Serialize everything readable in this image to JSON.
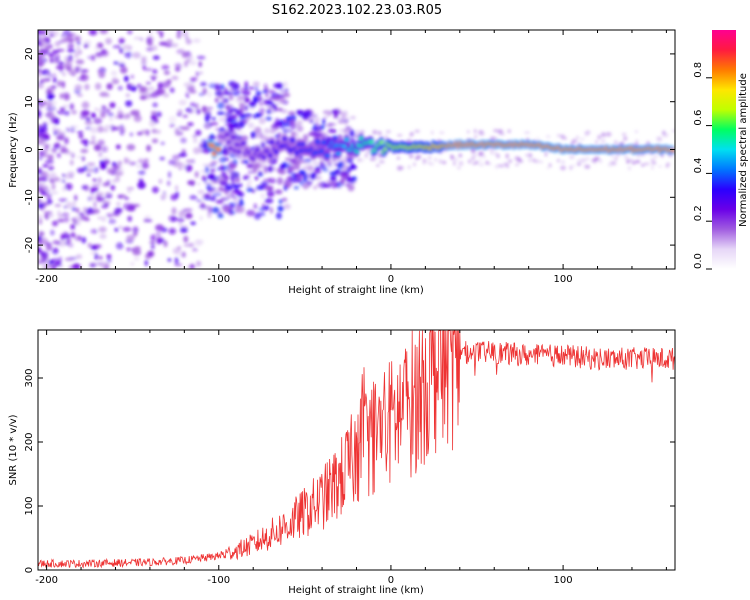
{
  "figure_title": "S162.2023.102.23.03.R05",
  "chart_data": [
    {
      "type": "heatmap",
      "title": "",
      "xlabel": "Height of straight line (km)",
      "ylabel": "Frequency (Hz)",
      "xlim": [
        -205,
        165
      ],
      "ylim": [
        -25,
        25
      ],
      "xticks": [
        -200,
        -100,
        0,
        100
      ],
      "yticks": [
        -20,
        -10,
        0,
        10,
        20
      ],
      "grid": false,
      "colormap": [
        "#ffffff",
        "#e6d6f7",
        "#a05ce0",
        "#6a00e8",
        "#2a00ff",
        "#0077ff",
        "#00e0f0",
        "#00ff60",
        "#c0ff00",
        "#ffe600",
        "#ff7a00",
        "#ff1a40",
        "#ff0090"
      ],
      "colorbar": {
        "label": "Normalized spectral amplitude",
        "range": [
          0,
          1
        ],
        "ticks": [
          0.0,
          0.2,
          0.4,
          0.6,
          0.8
        ],
        "tick_labels": [
          "0.0",
          "0.2",
          "0.4",
          "0.6",
          "0.8"
        ]
      },
      "description_of_signal": "broadband noise below about -100 km; energy concentrates near 0-2 Hz and becomes a steady strong line above about 30 km",
      "ridge": [
        {
          "x": -100,
          "freq": 3,
          "amp": 0.25
        },
        {
          "x": -80,
          "freq": -1,
          "amp": 0.3
        },
        {
          "x": -60,
          "freq": 1,
          "amp": 0.35
        },
        {
          "x": -40,
          "freq": 0,
          "amp": 0.4
        },
        {
          "x": -20,
          "freq": 1,
          "amp": 0.55
        },
        {
          "x": 0,
          "freq": 0.5,
          "amp": 0.7
        },
        {
          "x": 20,
          "freq": 0.5,
          "amp": 0.8
        },
        {
          "x": 40,
          "freq": 1,
          "amp": 0.95
        },
        {
          "x": 60,
          "freq": 1,
          "amp": 0.95
        },
        {
          "x": 80,
          "freq": 1,
          "amp": 0.95
        },
        {
          "x": 100,
          "freq": 0,
          "amp": 0.95
        },
        {
          "x": 120,
          "freq": 0,
          "amp": 0.95
        },
        {
          "x": 160,
          "freq": 0,
          "amp": 0.95
        }
      ]
    },
    {
      "type": "line",
      "title": "",
      "xlabel": "Height of straight line (km)",
      "ylabel": "SNR (10 * v/v)",
      "xlim": [
        -205,
        165
      ],
      "ylim": [
        0,
        375
      ],
      "xticks": [
        -200,
        -100,
        0,
        100
      ],
      "yticks": [
        0,
        100,
        200,
        300
      ],
      "grid": false,
      "color": "#ee3333",
      "series": [
        {
          "x": [
            -205,
            -180,
            -160,
            -140,
            -120,
            -100,
            -90,
            -80,
            -70,
            -60,
            -50,
            -40,
            -30,
            -20,
            -15,
            -10,
            -5,
            0,
            5,
            10,
            15,
            20,
            25,
            30,
            35,
            40,
            50,
            60,
            80,
            100,
            120,
            140,
            165
          ],
          "y": [
            10,
            10,
            11,
            12,
            15,
            22,
            30,
            40,
            55,
            70,
            90,
            110,
            140,
            180,
            200,
            210,
            220,
            230,
            245,
            255,
            270,
            300,
            320,
            335,
            340,
            340,
            340,
            340,
            335,
            335,
            330,
            330,
            330
          ]
        }
      ]
    }
  ]
}
